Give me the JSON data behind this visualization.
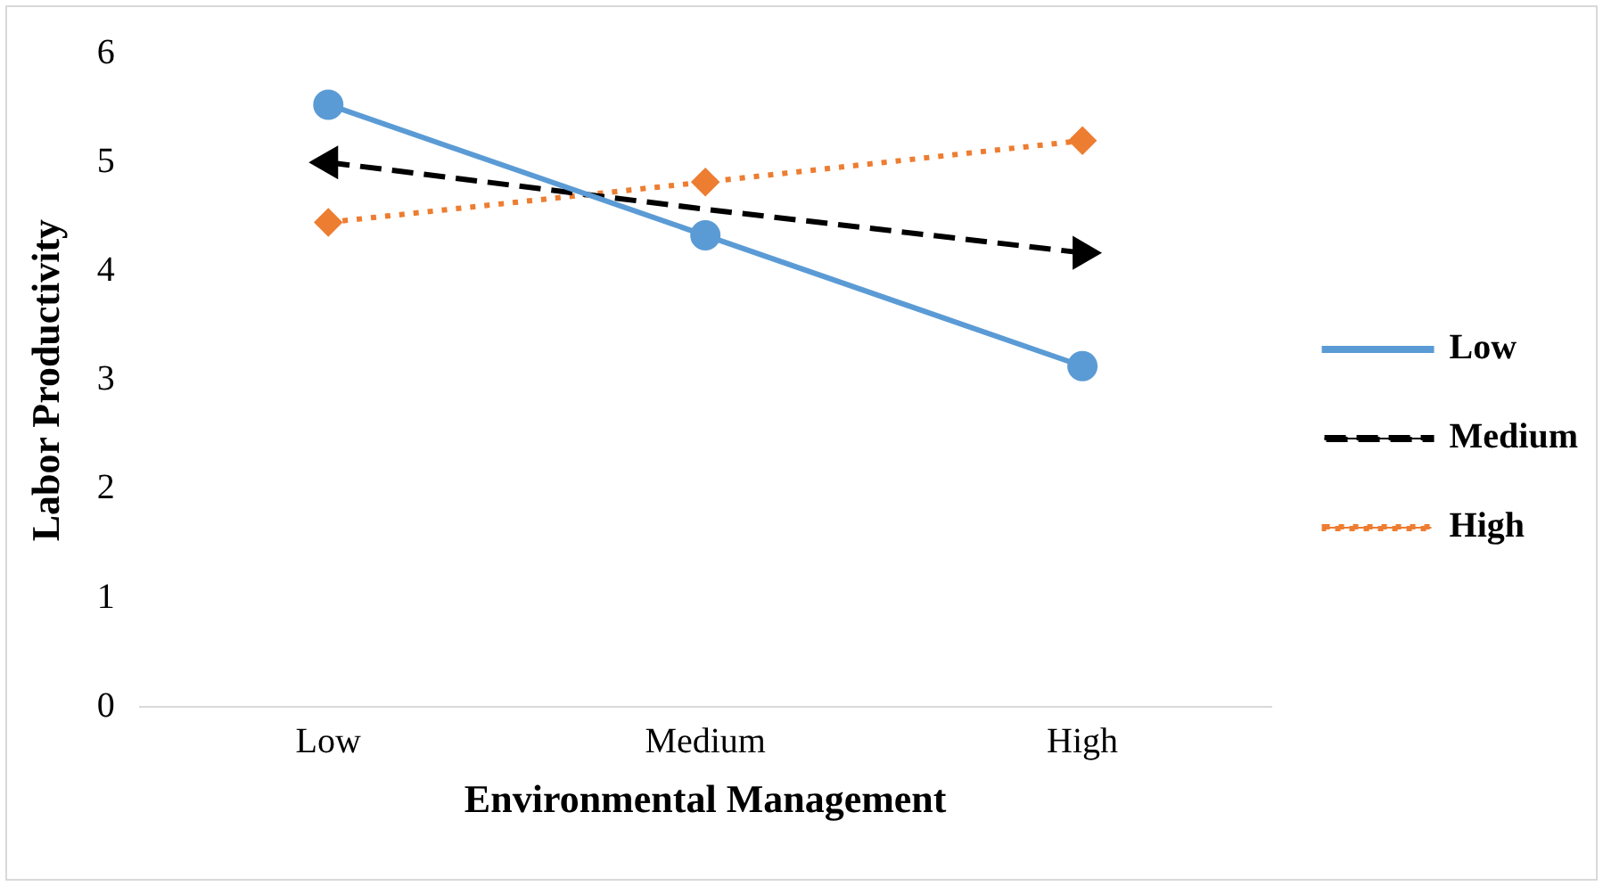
{
  "chart_data": {
    "type": "line",
    "xlabel": "Environmental Management",
    "ylabel": "Labor Productivity",
    "categories": [
      "Low",
      "Medium",
      "High"
    ],
    "series": [
      {
        "name": "Low",
        "color": "#5b9bd5",
        "values": [
          5.53,
          4.33,
          3.13
        ],
        "marker": "circle",
        "line_style": "solid"
      },
      {
        "name": "Medium",
        "color": "#000000",
        "values": [
          5.0,
          4.57,
          4.17
        ],
        "marker": "triangle",
        "line_style": "dashed"
      },
      {
        "name": "High",
        "color": "#ed7d31",
        "values": [
          4.45,
          4.82,
          5.2
        ],
        "marker": "diamond",
        "line_style": "dotted"
      }
    ],
    "ylim": [
      0,
      6
    ],
    "yticks": [
      0,
      1,
      2,
      3,
      4,
      5,
      6
    ],
    "grid": false,
    "legend": "right"
  }
}
